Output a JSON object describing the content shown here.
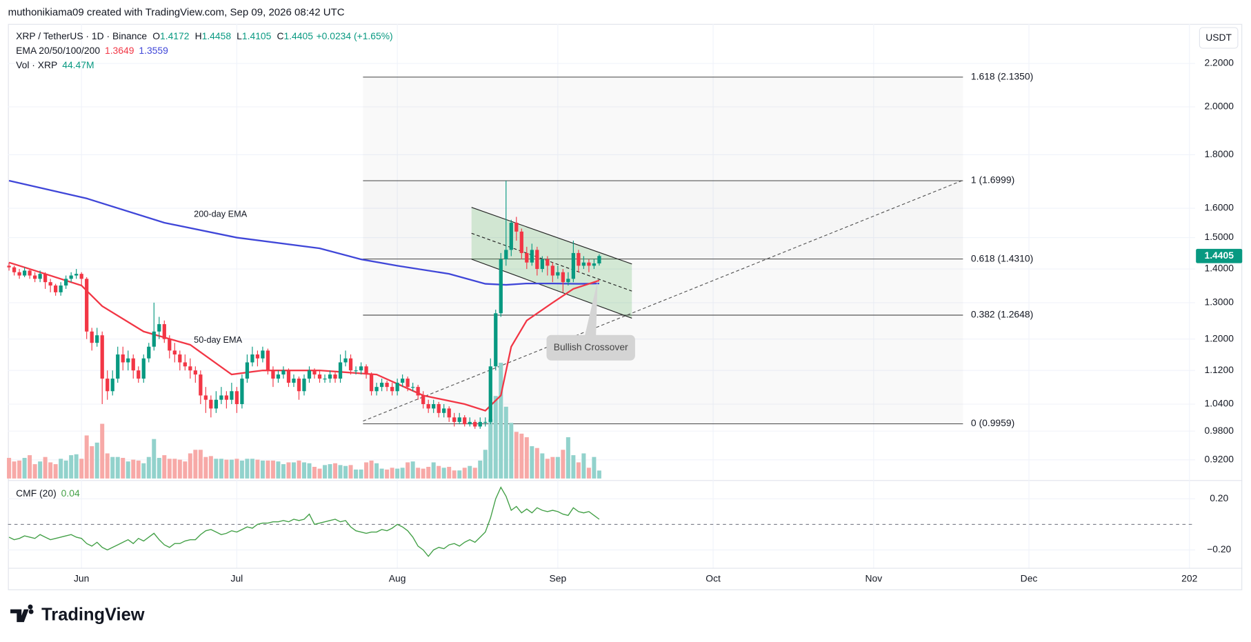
{
  "header": "muthonikiama09 created with TradingView.com, Sep 09, 2026 08:42 UTC",
  "logo": "TradingView",
  "chart_data": {
    "type": "candlestick",
    "symbol": "XRP / TetherUS · 1D · Binance",
    "ohlc_legend": [
      [
        "O",
        "1.4172"
      ],
      [
        "H",
        "1.4458"
      ],
      [
        "L",
        "1.4105"
      ],
      [
        "C",
        "1.4405"
      ]
    ],
    "change": "+0.0234 (+1.65%)",
    "ema_legend": {
      "label": "EMA 20/50/100/200",
      "values": [
        "1.3649",
        "1.3559"
      ]
    },
    "currency": "USDT",
    "up_color": "#089981",
    "down_color": "#f23645",
    "log_scale": true,
    "grid": true,
    "ylim": [
      0.883,
      2.4
    ],
    "yticks": [
      {
        "value": 0.92,
        "label": "0.9200"
      },
      {
        "value": 0.98,
        "label": "0.9800"
      },
      {
        "value": 1.04,
        "label": "1.0400"
      },
      {
        "value": 1.12,
        "label": "1.1200"
      },
      {
        "value": 1.2,
        "label": "1.2000"
      },
      {
        "value": 1.3,
        "label": "1.3000"
      },
      {
        "value": 1.4,
        "label": "1.4000"
      },
      {
        "value": 1.5,
        "label": "1.5000"
      },
      {
        "value": 1.6,
        "label": "1.6000"
      },
      {
        "value": 1.8,
        "label": "1.8000"
      },
      {
        "value": 2.0,
        "label": "2.0000"
      },
      {
        "value": 2.2,
        "label": "2.2000"
      }
    ],
    "xlim": [
      -0.2,
      229.1
    ],
    "xticks": [
      {
        "value": 14,
        "label": "Jun"
      },
      {
        "value": 44,
        "label": "Jul"
      },
      {
        "value": 75,
        "label": "Aug"
      },
      {
        "value": 106,
        "label": "Sep"
      },
      {
        "value": 136,
        "label": "Oct"
      },
      {
        "value": 167,
        "label": "Nov"
      },
      {
        "value": 197,
        "label": "Dec"
      },
      {
        "value": 228,
        "label": "202"
      }
    ],
    "last_price": {
      "value": 1.4405,
      "label": "1.4405"
    },
    "candles": [
      [
        1.41,
        1.42,
        1.395,
        1.405
      ],
      [
        1.405,
        1.41,
        1.38,
        1.39
      ],
      [
        1.39,
        1.4,
        1.37,
        1.38
      ],
      [
        1.38,
        1.405,
        1.375,
        1.395
      ],
      [
        1.395,
        1.4,
        1.37,
        1.38
      ],
      [
        1.38,
        1.39,
        1.36,
        1.37
      ],
      [
        1.37,
        1.395,
        1.36,
        1.385
      ],
      [
        1.385,
        1.39,
        1.34,
        1.36
      ],
      [
        1.36,
        1.37,
        1.33,
        1.35
      ],
      [
        1.35,
        1.355,
        1.32,
        1.33
      ],
      [
        1.33,
        1.36,
        1.32,
        1.35
      ],
      [
        1.35,
        1.38,
        1.34,
        1.37
      ],
      [
        1.37,
        1.39,
        1.36,
        1.38
      ],
      [
        1.38,
        1.4,
        1.37,
        1.385
      ],
      [
        1.385,
        1.39,
        1.35,
        1.37
      ],
      [
        1.37,
        1.375,
        1.2,
        1.22
      ],
      [
        1.22,
        1.23,
        1.17,
        1.19
      ],
      [
        1.19,
        1.23,
        1.18,
        1.21
      ],
      [
        1.21,
        1.22,
        1.04,
        1.1
      ],
      [
        1.1,
        1.12,
        1.05,
        1.07
      ],
      [
        1.07,
        1.12,
        1.06,
        1.1
      ],
      [
        1.1,
        1.18,
        1.09,
        1.16
      ],
      [
        1.16,
        1.18,
        1.12,
        1.14
      ],
      [
        1.14,
        1.17,
        1.12,
        1.15
      ],
      [
        1.15,
        1.16,
        1.1,
        1.12
      ],
      [
        1.12,
        1.13,
        1.09,
        1.1
      ],
      [
        1.1,
        1.16,
        1.09,
        1.15
      ],
      [
        1.15,
        1.19,
        1.14,
        1.18
      ],
      [
        1.18,
        1.3,
        1.17,
        1.22
      ],
      [
        1.22,
        1.26,
        1.2,
        1.24
      ],
      [
        1.24,
        1.25,
        1.19,
        1.2
      ],
      [
        1.2,
        1.21,
        1.15,
        1.17
      ],
      [
        1.17,
        1.19,
        1.14,
        1.16
      ],
      [
        1.16,
        1.17,
        1.12,
        1.14
      ],
      [
        1.14,
        1.16,
        1.12,
        1.13
      ],
      [
        1.13,
        1.15,
        1.1,
        1.12
      ],
      [
        1.12,
        1.13,
        1.09,
        1.11
      ],
      [
        1.11,
        1.12,
        1.04,
        1.06
      ],
      [
        1.06,
        1.08,
        1.02,
        1.05
      ],
      [
        1.05,
        1.06,
        1.01,
        1.03
      ],
      [
        1.03,
        1.07,
        1.02,
        1.05
      ],
      [
        1.05,
        1.08,
        1.04,
        1.06
      ],
      [
        1.06,
        1.07,
        1.03,
        1.05
      ],
      [
        1.05,
        1.09,
        1.04,
        1.07
      ],
      [
        1.07,
        1.08,
        1.02,
        1.04
      ],
      [
        1.04,
        1.11,
        1.03,
        1.1
      ],
      [
        1.1,
        1.16,
        1.09,
        1.14
      ],
      [
        1.14,
        1.18,
        1.13,
        1.16
      ],
      [
        1.16,
        1.17,
        1.13,
        1.15
      ],
      [
        1.15,
        1.18,
        1.14,
        1.17
      ],
      [
        1.17,
        1.175,
        1.11,
        1.12
      ],
      [
        1.12,
        1.13,
        1.08,
        1.1
      ],
      [
        1.1,
        1.12,
        1.09,
        1.11
      ],
      [
        1.11,
        1.13,
        1.1,
        1.12
      ],
      [
        1.12,
        1.125,
        1.08,
        1.09
      ],
      [
        1.09,
        1.11,
        1.08,
        1.1
      ],
      [
        1.1,
        1.105,
        1.05,
        1.07
      ],
      [
        1.07,
        1.11,
        1.06,
        1.1
      ],
      [
        1.1,
        1.13,
        1.09,
        1.12
      ],
      [
        1.12,
        1.125,
        1.1,
        1.11
      ],
      [
        1.11,
        1.12,
        1.09,
        1.1
      ],
      [
        1.1,
        1.11,
        1.09,
        1.1
      ],
      [
        1.1,
        1.12,
        1.09,
        1.11
      ],
      [
        1.11,
        1.115,
        1.09,
        1.1
      ],
      [
        1.1,
        1.16,
        1.09,
        1.14
      ],
      [
        1.14,
        1.17,
        1.13,
        1.15
      ],
      [
        1.15,
        1.16,
        1.11,
        1.12
      ],
      [
        1.12,
        1.13,
        1.11,
        1.12
      ],
      [
        1.12,
        1.14,
        1.11,
        1.13
      ],
      [
        1.13,
        1.135,
        1.1,
        1.11
      ],
      [
        1.11,
        1.115,
        1.06,
        1.07
      ],
      [
        1.07,
        1.09,
        1.06,
        1.08
      ],
      [
        1.08,
        1.1,
        1.07,
        1.09
      ],
      [
        1.09,
        1.095,
        1.07,
        1.08
      ],
      [
        1.08,
        1.09,
        1.06,
        1.07
      ],
      [
        1.07,
        1.1,
        1.06,
        1.09
      ],
      [
        1.09,
        1.11,
        1.08,
        1.1
      ],
      [
        1.1,
        1.105,
        1.07,
        1.08
      ],
      [
        1.08,
        1.09,
        1.07,
        1.08
      ],
      [
        1.08,
        1.085,
        1.05,
        1.06
      ],
      [
        1.06,
        1.07,
        1.03,
        1.04
      ],
      [
        1.04,
        1.05,
        1.02,
        1.03
      ],
      [
        1.03,
        1.05,
        1.02,
        1.04
      ],
      [
        1.04,
        1.045,
        1.01,
        1.02
      ],
      [
        1.02,
        1.04,
        1.01,
        1.03
      ],
      [
        1.03,
        1.035,
        1.0,
        1.01
      ],
      [
        1.01,
        1.02,
        0.99,
        1.0
      ],
      [
        1.0,
        1.02,
        0.995,
        1.01
      ],
      [
        1.01,
        1.015,
        0.99,
        0.995
      ],
      [
        0.995,
        1.01,
        0.99,
        1.0
      ],
      [
        1.0,
        1.005,
        0.985,
        0.99
      ],
      [
        0.99,
        1.01,
        0.985,
        1.0
      ],
      [
        1.0,
        1.01,
        0.99,
        1.0
      ],
      [
        1.0,
        1.15,
        0.995,
        1.13
      ],
      [
        1.13,
        1.28,
        1.12,
        1.27
      ],
      [
        1.27,
        1.45,
        1.26,
        1.43
      ],
      [
        1.43,
        1.6999,
        1.41,
        1.46
      ],
      [
        1.46,
        1.56,
        1.44,
        1.55
      ],
      [
        1.55,
        1.57,
        1.49,
        1.52
      ],
      [
        1.52,
        1.53,
        1.43,
        1.45
      ],
      [
        1.45,
        1.47,
        1.4,
        1.42
      ],
      [
        1.42,
        1.48,
        1.41,
        1.46
      ],
      [
        1.46,
        1.47,
        1.38,
        1.4
      ],
      [
        1.4,
        1.44,
        1.39,
        1.43
      ],
      [
        1.43,
        1.44,
        1.38,
        1.41
      ],
      [
        1.41,
        1.42,
        1.36,
        1.38
      ],
      [
        1.38,
        1.41,
        1.37,
        1.39
      ],
      [
        1.39,
        1.4,
        1.33,
        1.36
      ],
      [
        1.36,
        1.39,
        1.35,
        1.37
      ],
      [
        1.37,
        1.49,
        1.36,
        1.45
      ],
      [
        1.45,
        1.46,
        1.39,
        1.41
      ],
      [
        1.41,
        1.44,
        1.4,
        1.42
      ],
      [
        1.42,
        1.43,
        1.39,
        1.41
      ],
      [
        1.41,
        1.43,
        1.4,
        1.4172
      ],
      [
        1.4172,
        1.4458,
        1.4105,
        1.4405
      ]
    ],
    "lines": [
      {
        "name": "200-day EMA",
        "color": "#3f46d8",
        "x": [
          0,
          15,
          30,
          44,
          60,
          68,
          75,
          85,
          92,
          96,
          100,
          105,
          110,
          114
        ],
        "values": [
          1.7,
          1.635,
          1.55,
          1.5,
          1.465,
          1.43,
          1.41,
          1.385,
          1.355,
          1.352,
          1.356,
          1.356,
          1.355,
          1.3559
        ]
      },
      {
        "name": "50-day EMA",
        "color": "#f23645",
        "x": [
          0,
          4,
          14,
          18,
          26,
          35,
          43,
          49,
          60,
          71,
          80,
          88,
          92,
          95,
          97,
          100,
          105,
          109,
          114
        ],
        "values": [
          1.42,
          1.4,
          1.35,
          1.29,
          1.22,
          1.185,
          1.11,
          1.12,
          1.12,
          1.11,
          1.06,
          1.04,
          1.025,
          1.06,
          1.18,
          1.25,
          1.3,
          1.34,
          1.3649
        ]
      }
    ],
    "fib_levels": [
      {
        "value": 2.135,
        "label": "1.618 (2.1350)"
      },
      {
        "value": 1.6999,
        "label": "1 (1.6999)"
      },
      {
        "value": 1.431,
        "label": "0.618 (1.4310)"
      },
      {
        "value": 1.2648,
        "label": "0.382 (1.2648)"
      },
      {
        "value": 0.9959,
        "label": "0 (0.9959)"
      }
    ],
    "annotation": "Bullish Crossover",
    "volume": {
      "name": "Vol · XRP",
      "last": "44.47M",
      "ylim": [
        0,
        2533
      ],
      "up_color": "#92d2cc",
      "down_color": "#f7a9a7",
      "values": [
        115,
        95,
        100,
        115,
        130,
        80,
        95,
        120,
        90,
        80,
        110,
        100,
        130,
        135,
        110,
        240,
        180,
        200,
        305,
        140,
        120,
        120,
        115,
        95,
        105,
        100,
        85,
        120,
        220,
        115,
        130,
        110,
        110,
        105,
        95,
        140,
        160,
        160,
        120,
        125,
        110,
        110,
        105,
        105,
        110,
        100,
        110,
        110,
        105,
        100,
        100,
        100,
        95,
        80,
        90,
        90,
        100,
        90,
        85,
        65,
        55,
        75,
        80,
        85,
        75,
        70,
        75,
        50,
        50,
        90,
        100,
        85,
        55,
        50,
        60,
        55,
        60,
        90,
        95,
        60,
        55,
        65,
        90,
        70,
        60,
        65,
        45,
        45,
        60,
        70,
        60,
        100,
        160,
        330,
        460,
        645,
        400,
        310,
        260,
        250,
        230,
        180,
        170,
        140,
        110,
        120,
        120,
        160,
        230,
        130,
        90,
        140,
        60,
        120,
        44.47
      ]
    },
    "cmf": {
      "name": "CMF (20)",
      "last": "0.04",
      "color": "#43a047",
      "ylim": [
        -0.34,
        0.34
      ],
      "yticks": [
        {
          "value": 0.2,
          "label": "0.20"
        },
        {
          "value": -0.2,
          "label": "−0.20"
        }
      ],
      "values": [
        -0.1,
        -0.12,
        -0.11,
        -0.09,
        -0.1,
        -0.11,
        -0.08,
        -0.1,
        -0.12,
        -0.11,
        -0.1,
        -0.09,
        -0.08,
        -0.1,
        -0.11,
        -0.15,
        -0.17,
        -0.14,
        -0.18,
        -0.2,
        -0.18,
        -0.16,
        -0.14,
        -0.12,
        -0.15,
        -0.11,
        -0.13,
        -0.1,
        -0.07,
        -0.12,
        -0.16,
        -0.18,
        -0.15,
        -0.15,
        -0.13,
        -0.12,
        -0.12,
        -0.08,
        -0.05,
        -0.04,
        -0.06,
        -0.08,
        -0.07,
        -0.05,
        -0.06,
        -0.04,
        -0.02,
        -0.03,
        0.0,
        0.01,
        0.01,
        0.02,
        0.02,
        0.03,
        0.02,
        0.04,
        0.03,
        0.04,
        0.08,
        0.0,
        0.01,
        0.02,
        0.03,
        0.04,
        0.02,
        0.03,
        -0.02,
        -0.05,
        -0.06,
        -0.07,
        -0.06,
        -0.06,
        -0.04,
        -0.05,
        -0.03,
        0.0,
        -0.02,
        -0.05,
        -0.1,
        -0.17,
        -0.2,
        -0.25,
        -0.2,
        -0.18,
        -0.19,
        -0.16,
        -0.15,
        -0.17,
        -0.14,
        -0.12,
        -0.14,
        -0.1,
        -0.06,
        0.05,
        0.2,
        0.29,
        0.22,
        0.11,
        0.14,
        0.09,
        0.12,
        0.09,
        0.13,
        0.11,
        0.1,
        0.11,
        0.1,
        0.08,
        0.07,
        0.13,
        0.1,
        0.09,
        0.1,
        0.07,
        0.04
      ]
    }
  }
}
